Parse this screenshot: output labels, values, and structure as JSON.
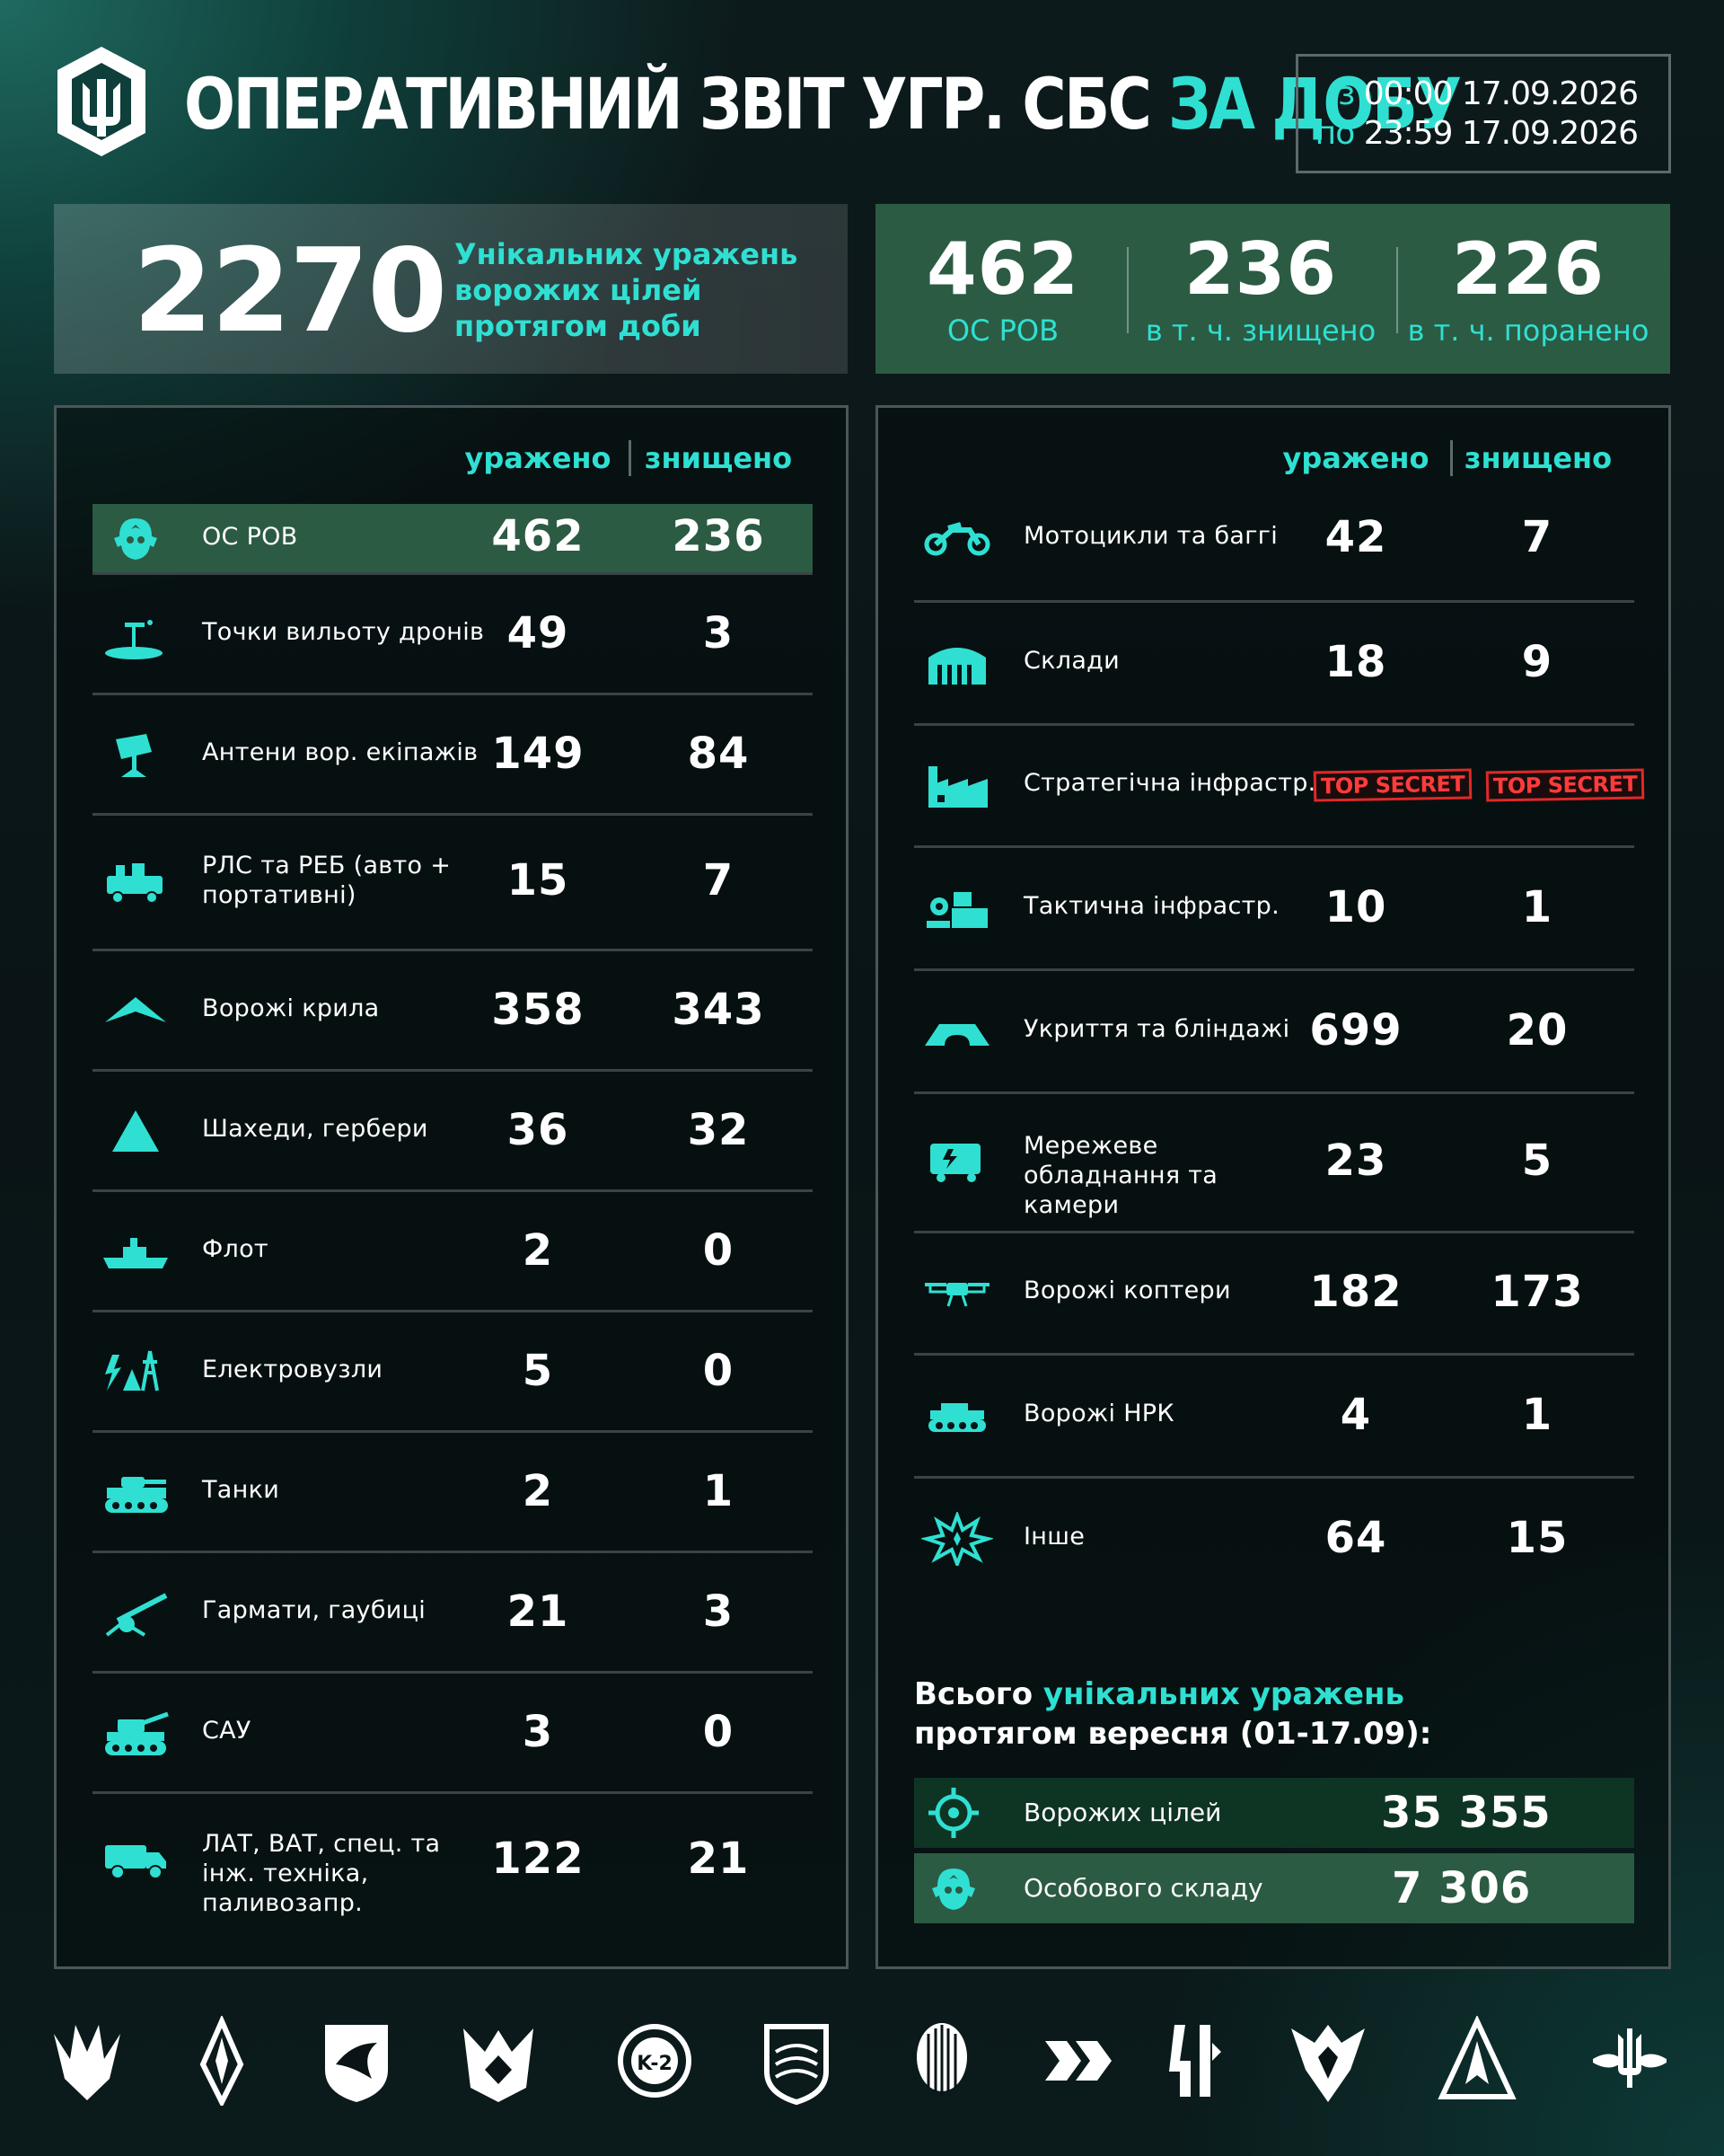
{
  "header": {
    "title_main": "ОПЕРАТИВНИЙ ЗВІТ УГР. СБС ",
    "title_accent": "ЗА ДОБУ",
    "date_from_prefix": "з",
    "date_from_value": "00:00 17.09.2026",
    "date_to_prefix": "по",
    "date_to_value": "23:59 17.09.2026"
  },
  "summary": {
    "unique_hits_value": "2270",
    "unique_hits_label": "Унікальних уражень ворожих цілей протягом доби",
    "personnel": [
      {
        "value": "462",
        "label": "ОС РОВ"
      },
      {
        "value": "236",
        "label": "в т. ч. знищено"
      },
      {
        "value": "226",
        "label": "в т. ч. поранено"
      }
    ]
  },
  "columns": {
    "hit": "уражено",
    "destroyed": "знищено"
  },
  "left_rows": [
    {
      "icon": "soldier-icon",
      "label": "ОС РОВ",
      "hit": "462",
      "destroyed": "236"
    },
    {
      "icon": "drone-launch-point-icon",
      "label": "Точки вильоту дронів",
      "hit": "49",
      "destroyed": "3"
    },
    {
      "icon": "antenna-icon",
      "label": "Антени вор. екіпажів",
      "hit": "149",
      "destroyed": "84"
    },
    {
      "icon": "radar-truck-icon",
      "label": "РЛС та РЕБ (авто + портативні)",
      "hit": "15",
      "destroyed": "7"
    },
    {
      "icon": "wing-drone-icon",
      "label": "Ворожі крила",
      "hit": "358",
      "destroyed": "343"
    },
    {
      "icon": "shahed-icon",
      "label": "Шахеди, гербери",
      "hit": "36",
      "destroyed": "32"
    },
    {
      "icon": "ship-icon",
      "label": "Флот",
      "hit": "2",
      "destroyed": "0"
    },
    {
      "icon": "power-tower-icon",
      "label": "Електровузли",
      "hit": "5",
      "destroyed": "0"
    },
    {
      "icon": "tank-icon",
      "label": "Танки",
      "hit": "2",
      "destroyed": "1"
    },
    {
      "icon": "howitzer-icon",
      "label": "Гармати, гаубиці",
      "hit": "21",
      "destroyed": "3"
    },
    {
      "icon": "sau-icon",
      "label": "САУ",
      "hit": "3",
      "destroyed": "0"
    },
    {
      "icon": "truck-icon",
      "label": "ЛАТ, ВАТ, спец. та інж. техніка, паливозапр.",
      "hit": "122",
      "destroyed": "21"
    }
  ],
  "right_rows": [
    {
      "icon": "motorcycle-icon",
      "label": "Мотоцикли та баггі",
      "hit": "42",
      "destroyed": "7"
    },
    {
      "icon": "warehouse-icon",
      "label": "Склади",
      "hit": "18",
      "destroyed": "9"
    },
    {
      "icon": "factory-icon",
      "label": "Стратегічна інфрастр.",
      "hit": "TOP SECRET",
      "destroyed": "TOP SECRET",
      "secret": true
    },
    {
      "icon": "gear-building-icon",
      "label": "Тактична інфрастр.",
      "hit": "10",
      "destroyed": "1"
    },
    {
      "icon": "bunker-icon",
      "label": "Укриття та бліндажі",
      "hit": "699",
      "destroyed": "20"
    },
    {
      "icon": "network-device-icon",
      "label": "Мережеве обладнання та камери",
      "hit": "23",
      "destroyed": "5"
    },
    {
      "icon": "quadcopter-icon",
      "label": "Ворожі коптери",
      "hit": "182",
      "destroyed": "173"
    },
    {
      "icon": "ugv-icon",
      "label": "Ворожі НРК",
      "hit": "4",
      "destroyed": "1"
    },
    {
      "icon": "explosion-icon",
      "label": "Інше",
      "hit": "64",
      "destroyed": "15"
    }
  ],
  "totals": {
    "title_a": "Всього ",
    "title_accent": "унікальних уражень",
    "title_b": "протягом вересня (01-17.09):",
    "rows": [
      {
        "icon": "target-icon",
        "label": "Ворожих цілей",
        "value": "35 355"
      },
      {
        "icon": "soldier-icon",
        "label": "Особового складу",
        "value": "7 306"
      }
    ]
  },
  "footer_logos": [
    "unit-emblem-1-icon",
    "unit-emblem-2-icon",
    "unit-emblem-3-icon",
    "unit-emblem-4-icon",
    "unit-emblem-5-icon",
    "unit-emblem-6-icon",
    "unit-emblem-7-icon",
    "unit-emblem-8-icon",
    "unit-emblem-9-icon",
    "unit-emblem-10-icon",
    "unit-emblem-11-icon",
    "unit-emblem-12-icon"
  ],
  "colors": {
    "accent": "#2fe0d2",
    "highlight_green": "#2c5b43",
    "secret_red": "#e02828"
  }
}
